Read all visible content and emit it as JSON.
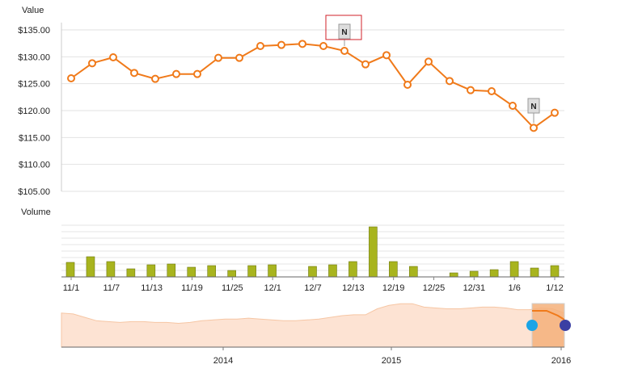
{
  "chart_data": [
    {
      "type": "line",
      "ylabel": "Value",
      "ylim": [
        105,
        135
      ],
      "yticks": [
        "$135.00",
        "$130.00",
        "$125.00",
        "$120.00",
        "$115.00",
        "$110.00",
        "$105.00"
      ],
      "ytick_values": [
        135,
        130,
        125,
        120,
        115,
        110,
        105
      ],
      "grid": true,
      "color": "#f07a1a",
      "values": [
        126.0,
        128.8,
        129.9,
        127.0,
        125.9,
        126.8,
        126.8,
        129.8,
        129.8,
        132.0,
        132.2,
        132.4,
        132.0,
        131.1,
        128.6,
        130.3,
        124.8,
        129.1,
        125.5,
        123.8,
        123.6,
        120.9,
        116.8,
        119.6
      ],
      "flags": [
        {
          "label": "N",
          "at": 13,
          "highlighted": true
        },
        {
          "label": "N",
          "at": 22,
          "highlighted": false
        }
      ]
    },
    {
      "type": "bar",
      "ylabel": "Volume",
      "color": "#a8b41e",
      "values": [
        18,
        25,
        19,
        10,
        15,
        16,
        12,
        14,
        8,
        14,
        15,
        null,
        13,
        15,
        19,
        62,
        19,
        13,
        null,
        5,
        7,
        9,
        19,
        11,
        14
      ],
      "xtick_labels": [
        "11/1",
        "11/7",
        "11/13",
        "11/19",
        "11/25",
        "12/1",
        "12/7",
        "12/13",
        "12/19",
        "12/25",
        "12/31",
        "1/6",
        "1/12"
      ]
    },
    {
      "type": "area",
      "role": "navigator",
      "xtick_labels": [
        "2014",
        "2015",
        "2016"
      ],
      "fill_color": "#fde3d3",
      "selected_color": "#f5b07a",
      "handle_left_color": "#1aa4e6",
      "handle_right_color": "#3b3fa3",
      "values": [
        40,
        39,
        35,
        31,
        30,
        29,
        30,
        30,
        29,
        29,
        28,
        29,
        31,
        32,
        33,
        33,
        34,
        33,
        32,
        31,
        31,
        32,
        33,
        35,
        37,
        38,
        38,
        45,
        49,
        51,
        51,
        47,
        46,
        45,
        45,
        46,
        47,
        47,
        46,
        44,
        44,
        46,
        45,
        40
      ]
    }
  ]
}
